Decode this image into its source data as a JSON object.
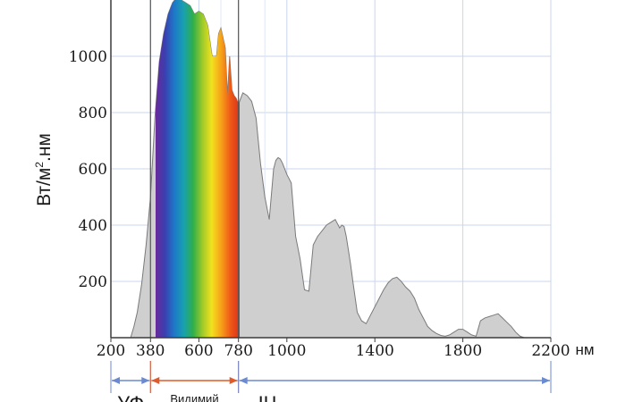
{
  "chart_data": {
    "type": "area",
    "ylabel_base": "Вт/м",
    "ylabel_sup": "2",
    "ylabel_rest": ".нм",
    "x_unit": "нм",
    "xlim": [
      200,
      2200
    ],
    "ylim": [
      0,
      1200
    ],
    "x_ticks": [
      "200",
      "380",
      "600",
      "780",
      "1000",
      "1400",
      "1800",
      "2200"
    ],
    "y_ticks": [
      "200",
      "400",
      "600",
      "800",
      "1000"
    ],
    "grid": true,
    "spectrum_colors": [
      "#6a2a9a",
      "#3a3fb0",
      "#1f78c8",
      "#18a0b0",
      "#2fae4a",
      "#9cc92a",
      "#f2e21e",
      "#f7a21a",
      "#ef5a17",
      "#d8311a"
    ],
    "fill_color": "#cfcfcf",
    "series": [
      {
        "x": [
          290,
          305,
          320,
          340,
          360,
          380,
          400,
          420,
          440,
          460,
          480,
          500,
          520,
          540,
          560,
          580,
          600,
          620,
          640,
          660,
          680,
          690,
          700,
          720,
          730,
          740,
          750,
          760,
          770,
          780,
          800,
          820,
          840,
          860,
          880,
          900,
          920,
          940,
          950,
          960,
          970,
          980,
          1000,
          1020,
          1040,
          1060,
          1080,
          1100,
          1120,
          1140,
          1160,
          1180,
          1200,
          1220,
          1240,
          1250,
          1260,
          1270,
          1280,
          1290,
          1300,
          1320,
          1340,
          1360,
          1380,
          1400,
          1420,
          1440,
          1460,
          1480,
          1500,
          1520,
          1540,
          1560,
          1580,
          1600,
          1620,
          1640,
          1660,
          1680,
          1700,
          1720,
          1740,
          1760,
          1780,
          1800,
          1820,
          1840,
          1860,
          1880,
          1900,
          1920,
          1940,
          1960,
          1980,
          2000,
          2020,
          2040,
          2060,
          2080,
          2100,
          2120,
          2140,
          2160,
          2180,
          2200
        ],
        "y": [
          0,
          40,
          90,
          190,
          330,
          500,
          780,
          980,
          1080,
          1150,
          1190,
          1210,
          1200,
          1190,
          1180,
          1150,
          1160,
          1150,
          1110,
          1000,
          1000,
          1080,
          1100,
          1030,
          860,
          1000,
          880,
          860,
          850,
          830,
          870,
          860,
          840,
          780,
          620,
          500,
          420,
          600,
          630,
          640,
          635,
          620,
          580,
          550,
          360,
          280,
          170,
          165,
          330,
          360,
          380,
          400,
          410,
          420,
          390,
          400,
          395,
          360,
          310,
          260,
          200,
          90,
          60,
          50,
          80,
          110,
          140,
          170,
          195,
          210,
          215,
          200,
          180,
          165,
          140,
          100,
          70,
          40,
          25,
          15,
          8,
          5,
          10,
          20,
          30,
          30,
          20,
          10,
          5,
          60,
          70,
          75,
          80,
          85,
          70,
          55,
          40,
          20,
          5,
          0,
          0,
          0,
          0,
          0,
          0,
          0
        ]
      }
    ],
    "bands": [
      {
        "label": "УФ",
        "from": 200,
        "to": 380,
        "arrow_color": "#6b8ad0"
      },
      {
        "label": "Видимий",
        "from": 380,
        "to": 780,
        "arrow_color": "#e05a2b"
      },
      {
        "label": "ІЧ",
        "from": 780,
        "to": 2200,
        "arrow_color": "#6b8ad0"
      }
    ]
  }
}
